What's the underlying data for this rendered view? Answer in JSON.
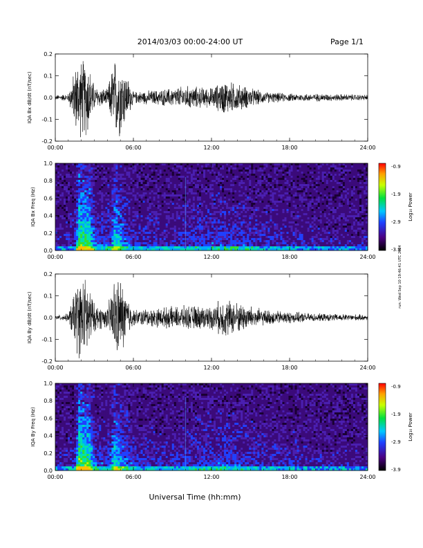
{
  "header": {
    "date_range": "2014/03/03  00:00-24:00 UT",
    "page": "Page 1/1"
  },
  "side_stamp": "run: Wed Sep 10 19:46:41 UTC 2014",
  "xlabel": "Universal Time (hh:mm)",
  "colors": {
    "trace": "#000000",
    "axes": "#000000"
  },
  "chart_data": [
    {
      "type": "line",
      "ylabel": "IQA Bx dB/dt (nT/sec)",
      "xlim": [
        0,
        24
      ],
      "ylim": [
        -0.2,
        0.2
      ],
      "yticks": [
        "0.2",
        "0.1",
        "0.0",
        "-0.1",
        "-0.2"
      ],
      "xticks": [
        "00:00",
        "06:00",
        "12:00",
        "18:00",
        "24:00"
      ],
      "x": [
        0,
        1,
        1.7,
        2.0,
        2.5,
        3.0,
        4.0,
        4.5,
        5.0,
        6.0,
        8.0,
        10.0,
        12.0,
        13.0,
        14.0,
        16.0,
        18.0,
        20.0,
        24.0
      ],
      "envelope": [
        0.012,
        0.02,
        0.2,
        0.2,
        0.2,
        0.06,
        0.04,
        0.2,
        0.2,
        0.03,
        0.04,
        0.06,
        0.05,
        0.09,
        0.07,
        0.03,
        0.02,
        0.02,
        0.015
      ]
    },
    {
      "type": "heatmap",
      "ylabel": "IQA Bx Freq (Hz)",
      "xlim": [
        0,
        24
      ],
      "ylim": [
        0,
        1
      ],
      "yticks": [
        "1.0",
        "0.8",
        "0.6",
        "0.4",
        "0.2",
        "0.0"
      ],
      "xticks": [
        "00:00",
        "06:00",
        "12:00",
        "18:00",
        "24:00"
      ],
      "colorbar": {
        "label": "Log₁₀ Power",
        "ticks": [
          "-0.9",
          "-1.9",
          "-2.9",
          "-3.9"
        ],
        "range": [
          -3.9,
          -0.9
        ]
      }
    },
    {
      "type": "line",
      "ylabel": "IQA By dB/dt (nT/sec)",
      "xlim": [
        0,
        24
      ],
      "ylim": [
        -0.2,
        0.2
      ],
      "yticks": [
        "0.2",
        "0.1",
        "0.0",
        "-0.1",
        "-0.2"
      ],
      "xticks": [
        "00:00",
        "06:00",
        "12:00",
        "18:00",
        "24:00"
      ],
      "x": [
        0,
        1,
        1.7,
        2.0,
        2.5,
        3.0,
        4.0,
        4.5,
        5.0,
        6.0,
        8.0,
        10.0,
        12.0,
        13.0,
        14.0,
        16.0,
        18.0,
        20.0,
        24.0
      ],
      "envelope": [
        0.012,
        0.02,
        0.2,
        0.2,
        0.2,
        0.07,
        0.05,
        0.2,
        0.2,
        0.04,
        0.05,
        0.06,
        0.06,
        0.1,
        0.08,
        0.04,
        0.03,
        0.02,
        0.015
      ]
    },
    {
      "type": "heatmap",
      "ylabel": "IQA By Freq (Hz)",
      "xlim": [
        0,
        24
      ],
      "ylim": [
        0,
        1
      ],
      "yticks": [
        "1.0",
        "0.8",
        "0.6",
        "0.4",
        "0.2",
        "0.0"
      ],
      "xticks": [
        "00:00",
        "06:00",
        "12:00",
        "18:00",
        "24:00"
      ],
      "colorbar": {
        "label": "Log₁₀ Power",
        "ticks": [
          "-0.9",
          "-1.9",
          "-2.9",
          "-3.9"
        ],
        "range": [
          -3.9,
          -0.9
        ]
      }
    }
  ]
}
